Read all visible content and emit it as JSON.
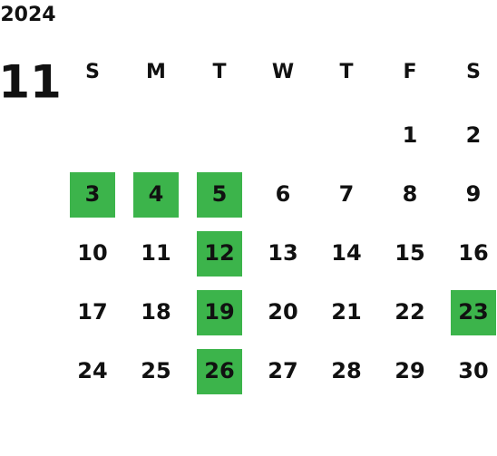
{
  "year": "2024",
  "month": "11",
  "weekdays": [
    "S",
    "M",
    "T",
    "W",
    "T",
    "F",
    "S"
  ],
  "colors": {
    "sunday_header": "#ff0000",
    "saturday_header": "#0000ff",
    "sunday": "#e5231b",
    "saturday": "#1d3f8f",
    "weekday": "#111111",
    "highlight": "#3cb44b",
    "highlight_text": "#ffffff"
  },
  "weeks": [
    [
      null,
      null,
      null,
      null,
      null,
      {
        "day": 1
      },
      {
        "day": 2
      }
    ],
    [
      {
        "day": 3,
        "highlighted": true
      },
      {
        "day": 4,
        "highlighted": true
      },
      {
        "day": 5,
        "highlighted": true
      },
      {
        "day": 6
      },
      {
        "day": 7
      },
      {
        "day": 8
      },
      {
        "day": 9
      }
    ],
    [
      {
        "day": 10
      },
      {
        "day": 11
      },
      {
        "day": 12,
        "highlighted": true
      },
      {
        "day": 13
      },
      {
        "day": 14
      },
      {
        "day": 15
      },
      {
        "day": 16
      }
    ],
    [
      {
        "day": 17
      },
      {
        "day": 18
      },
      {
        "day": 19,
        "highlighted": true
      },
      {
        "day": 20
      },
      {
        "day": 21
      },
      {
        "day": 22
      },
      {
        "day": 23,
        "highlighted": true
      }
    ],
    [
      {
        "day": 24
      },
      {
        "day": 25
      },
      {
        "day": 26,
        "highlighted": true
      },
      {
        "day": 27
      },
      {
        "day": 28
      },
      {
        "day": 29
      },
      {
        "day": 30
      }
    ]
  ]
}
